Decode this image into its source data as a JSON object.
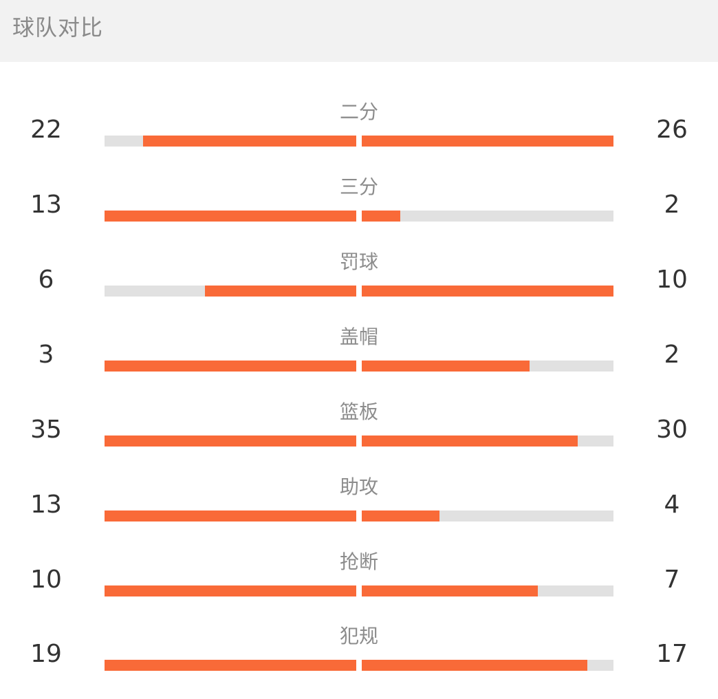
{
  "header": {
    "title": "球队对比"
  },
  "colors": {
    "accent": "#f96a38",
    "track": "#e1e1e1",
    "header_bg": "#f2f2f2"
  },
  "stats": [
    {
      "label": "二分",
      "left": "22",
      "right": "26",
      "left_fraction": 0.846,
      "right_fraction": 1.0
    },
    {
      "label": "三分",
      "left": "13",
      "right": "2",
      "left_fraction": 1.0,
      "right_fraction": 0.154
    },
    {
      "label": "罚球",
      "left": "6",
      "right": "10",
      "left_fraction": 0.6,
      "right_fraction": 1.0
    },
    {
      "label": "盖帽",
      "left": "3",
      "right": "2",
      "left_fraction": 1.0,
      "right_fraction": 0.667
    },
    {
      "label": "篮板",
      "left": "35",
      "right": "30",
      "left_fraction": 1.0,
      "right_fraction": 0.857
    },
    {
      "label": "助攻",
      "left": "13",
      "right": "4",
      "left_fraction": 1.0,
      "right_fraction": 0.308
    },
    {
      "label": "抢断",
      "left": "10",
      "right": "7",
      "left_fraction": 1.0,
      "right_fraction": 0.7
    },
    {
      "label": "犯规",
      "left": "19",
      "right": "17",
      "left_fraction": 1.0,
      "right_fraction": 0.895
    }
  ]
}
